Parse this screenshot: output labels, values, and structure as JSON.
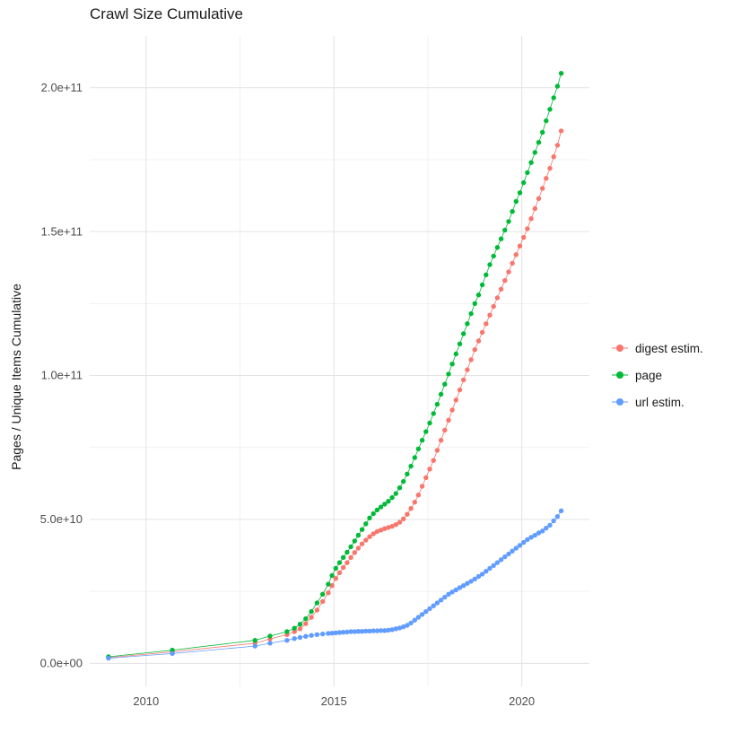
{
  "chart_data": {
    "type": "scatter",
    "title": "Crawl Size Cumulative",
    "xlabel": "",
    "ylabel": "Pages / Unique Items Cumulative",
    "legend_position": "right",
    "grid": true,
    "value_unit_note": "point y-values are in billions (1e9); axis labels shown in scientific notation",
    "xlim": [
      2008.5,
      2021.8
    ],
    "ylim": [
      -8,
      218
    ],
    "x_ticks": [
      {
        "v": 2010,
        "label": "2010"
      },
      {
        "v": 2015,
        "label": "2015"
      },
      {
        "v": 2020,
        "label": "2020"
      }
    ],
    "y_ticks": [
      {
        "v": 0,
        "label": "0.0e+00"
      },
      {
        "v": 50,
        "label": "5.0e+10"
      },
      {
        "v": 100,
        "label": "1.0e+11"
      },
      {
        "v": 150,
        "label": "1.5e+11"
      },
      {
        "v": 200,
        "label": "2.0e+11"
      }
    ],
    "x_minor": [
      2012.5,
      2017.5
    ],
    "y_minor": [
      25,
      75,
      125,
      175
    ],
    "colors": {
      "background": "#FFFFFF",
      "grid_major": "#E3E3E3",
      "grid_minor": "#F1F1F1",
      "tick_label": "#4D4D4D",
      "text": "#1A1A1A"
    },
    "series": [
      {
        "name": "digest estim.",
        "color": "#F8766D",
        "points": [
          [
            2009.0,
            2.0
          ],
          [
            2010.7,
            4.0
          ],
          [
            2012.9,
            7.0
          ],
          [
            2013.3,
            8.5
          ],
          [
            2013.75,
            10.0
          ],
          [
            2013.95,
            11.0
          ],
          [
            2014.1,
            12.0
          ],
          [
            2014.25,
            13.8
          ],
          [
            2014.4,
            16.0
          ],
          [
            2014.55,
            18.5
          ],
          [
            2014.7,
            21.5
          ],
          [
            2014.85,
            24.5
          ],
          [
            2014.95,
            27.0
          ],
          [
            2015.05,
            29.5
          ],
          [
            2015.15,
            31.5
          ],
          [
            2015.25,
            33.3
          ],
          [
            2015.35,
            35.0
          ],
          [
            2015.45,
            36.8
          ],
          [
            2015.55,
            38.5
          ],
          [
            2015.65,
            40.0
          ],
          [
            2015.75,
            41.5
          ],
          [
            2015.85,
            42.8
          ],
          [
            2015.95,
            44.0
          ],
          [
            2016.05,
            45.0
          ],
          [
            2016.15,
            45.8
          ],
          [
            2016.25,
            46.3
          ],
          [
            2016.35,
            46.8
          ],
          [
            2016.45,
            47.2
          ],
          [
            2016.55,
            47.6
          ],
          [
            2016.65,
            48.2
          ],
          [
            2016.75,
            49.0
          ],
          [
            2016.85,
            50.2
          ],
          [
            2016.95,
            51.8
          ],
          [
            2017.05,
            53.8
          ],
          [
            2017.15,
            56.0
          ],
          [
            2017.25,
            58.5
          ],
          [
            2017.35,
            61.5
          ],
          [
            2017.45,
            64.5
          ],
          [
            2017.55,
            67.5
          ],
          [
            2017.65,
            70.5
          ],
          [
            2017.75,
            74.0
          ],
          [
            2017.85,
            77.5
          ],
          [
            2017.95,
            81.0
          ],
          [
            2018.05,
            84.5
          ],
          [
            2018.15,
            88.0
          ],
          [
            2018.25,
            91.5
          ],
          [
            2018.35,
            95.0
          ],
          [
            2018.45,
            98.5
          ],
          [
            2018.55,
            102.0
          ],
          [
            2018.65,
            105.5
          ],
          [
            2018.75,
            109.0
          ],
          [
            2018.85,
            112.0
          ],
          [
            2018.95,
            115.0
          ],
          [
            2019.05,
            118.0
          ],
          [
            2019.15,
            121.0
          ],
          [
            2019.25,
            124.0
          ],
          [
            2019.35,
            127.0
          ],
          [
            2019.45,
            130.0
          ],
          [
            2019.55,
            133.0
          ],
          [
            2019.65,
            136.0
          ],
          [
            2019.75,
            139.0
          ],
          [
            2019.85,
            142.0
          ],
          [
            2019.95,
            145.0
          ],
          [
            2020.05,
            148.0
          ],
          [
            2020.15,
            151.0
          ],
          [
            2020.25,
            154.5
          ],
          [
            2020.35,
            158.0
          ],
          [
            2020.45,
            161.5
          ],
          [
            2020.55,
            165.0
          ],
          [
            2020.65,
            168.5
          ],
          [
            2020.75,
            172.0
          ],
          [
            2020.85,
            176.0
          ],
          [
            2020.95,
            180.0
          ],
          [
            2021.05,
            185.0
          ]
        ]
      },
      {
        "name": "page",
        "color": "#00BA38",
        "points": [
          [
            2009.0,
            2.3
          ],
          [
            2010.7,
            4.6
          ],
          [
            2012.9,
            8.0
          ],
          [
            2013.3,
            9.5
          ],
          [
            2013.75,
            11.0
          ],
          [
            2013.95,
            12.2
          ],
          [
            2014.1,
            13.6
          ],
          [
            2014.25,
            15.5
          ],
          [
            2014.4,
            18.0
          ],
          [
            2014.55,
            21.0
          ],
          [
            2014.7,
            24.0
          ],
          [
            2014.85,
            27.5
          ],
          [
            2014.95,
            30.5
          ],
          [
            2015.05,
            33.0
          ],
          [
            2015.15,
            35.0
          ],
          [
            2015.25,
            36.8
          ],
          [
            2015.35,
            38.6
          ],
          [
            2015.45,
            40.5
          ],
          [
            2015.55,
            42.5
          ],
          [
            2015.65,
            44.5
          ],
          [
            2015.75,
            46.5
          ],
          [
            2015.85,
            48.5
          ],
          [
            2015.95,
            50.5
          ],
          [
            2016.05,
            52.0
          ],
          [
            2016.15,
            53.3
          ],
          [
            2016.25,
            54.3
          ],
          [
            2016.35,
            55.3
          ],
          [
            2016.45,
            56.3
          ],
          [
            2016.55,
            57.6
          ],
          [
            2016.65,
            59.0
          ],
          [
            2016.75,
            61.0
          ],
          [
            2016.85,
            63.2
          ],
          [
            2016.95,
            65.8
          ],
          [
            2017.05,
            68.5
          ],
          [
            2017.15,
            71.5
          ],
          [
            2017.25,
            74.5
          ],
          [
            2017.35,
            77.5
          ],
          [
            2017.45,
            80.5
          ],
          [
            2017.55,
            83.5
          ],
          [
            2017.65,
            86.8
          ],
          [
            2017.75,
            90.0
          ],
          [
            2017.85,
            93.5
          ],
          [
            2017.95,
            97.0
          ],
          [
            2018.05,
            100.5
          ],
          [
            2018.15,
            104.0
          ],
          [
            2018.25,
            107.5
          ],
          [
            2018.35,
            111.0
          ],
          [
            2018.45,
            114.5
          ],
          [
            2018.55,
            118.0
          ],
          [
            2018.65,
            121.5
          ],
          [
            2018.75,
            125.0
          ],
          [
            2018.85,
            128.0
          ],
          [
            2018.95,
            131.5
          ],
          [
            2019.05,
            135.0
          ],
          [
            2019.15,
            138.5
          ],
          [
            2019.25,
            141.5
          ],
          [
            2019.35,
            144.5
          ],
          [
            2019.45,
            147.5
          ],
          [
            2019.55,
            150.5
          ],
          [
            2019.65,
            153.5
          ],
          [
            2019.75,
            157.0
          ],
          [
            2019.85,
            160.5
          ],
          [
            2019.95,
            163.5
          ],
          [
            2020.05,
            167.0
          ],
          [
            2020.15,
            170.5
          ],
          [
            2020.25,
            174.0
          ],
          [
            2020.35,
            177.5
          ],
          [
            2020.45,
            181.0
          ],
          [
            2020.55,
            184.5
          ],
          [
            2020.65,
            188.5
          ],
          [
            2020.75,
            192.5
          ],
          [
            2020.85,
            196.5
          ],
          [
            2020.95,
            200.5
          ],
          [
            2021.05,
            205.0
          ]
        ]
      },
      {
        "name": "url estim.",
        "color": "#619CFF",
        "points": [
          [
            2009.0,
            1.8
          ],
          [
            2010.7,
            3.4
          ],
          [
            2012.9,
            6.0
          ],
          [
            2013.3,
            7.0
          ],
          [
            2013.75,
            8.0
          ],
          [
            2013.95,
            8.6
          ],
          [
            2014.1,
            9.0
          ],
          [
            2014.25,
            9.4
          ],
          [
            2014.4,
            9.7
          ],
          [
            2014.55,
            10.0
          ],
          [
            2014.7,
            10.2
          ],
          [
            2014.85,
            10.4
          ],
          [
            2014.95,
            10.5
          ],
          [
            2015.05,
            10.6
          ],
          [
            2015.15,
            10.7
          ],
          [
            2015.25,
            10.8
          ],
          [
            2015.35,
            10.9
          ],
          [
            2015.45,
            11.0
          ],
          [
            2015.55,
            11.0
          ],
          [
            2015.65,
            11.1
          ],
          [
            2015.75,
            11.1
          ],
          [
            2015.85,
            11.2
          ],
          [
            2015.95,
            11.2
          ],
          [
            2016.05,
            11.3
          ],
          [
            2016.15,
            11.3
          ],
          [
            2016.25,
            11.4
          ],
          [
            2016.35,
            11.4
          ],
          [
            2016.45,
            11.5
          ],
          [
            2016.55,
            11.7
          ],
          [
            2016.65,
            12.0
          ],
          [
            2016.75,
            12.3
          ],
          [
            2016.85,
            12.7
          ],
          [
            2016.95,
            13.2
          ],
          [
            2017.05,
            14.0
          ],
          [
            2017.15,
            15.0
          ],
          [
            2017.25,
            16.0
          ],
          [
            2017.35,
            17.0
          ],
          [
            2017.45,
            18.0
          ],
          [
            2017.55,
            19.0
          ],
          [
            2017.65,
            20.0
          ],
          [
            2017.75,
            21.0
          ],
          [
            2017.85,
            22.0
          ],
          [
            2017.95,
            23.0
          ],
          [
            2018.05,
            24.0
          ],
          [
            2018.15,
            24.8
          ],
          [
            2018.25,
            25.5
          ],
          [
            2018.35,
            26.3
          ],
          [
            2018.45,
            27.0
          ],
          [
            2018.55,
            27.8
          ],
          [
            2018.65,
            28.5
          ],
          [
            2018.75,
            29.3
          ],
          [
            2018.85,
            30.2
          ],
          [
            2018.95,
            31.0
          ],
          [
            2019.05,
            32.0
          ],
          [
            2019.15,
            33.0
          ],
          [
            2019.25,
            34.0
          ],
          [
            2019.35,
            35.0
          ],
          [
            2019.45,
            36.0
          ],
          [
            2019.55,
            37.0
          ],
          [
            2019.65,
            38.0
          ],
          [
            2019.75,
            39.0
          ],
          [
            2019.85,
            40.0
          ],
          [
            2019.95,
            41.0
          ],
          [
            2020.05,
            42.0
          ],
          [
            2020.15,
            43.0
          ],
          [
            2020.25,
            43.8
          ],
          [
            2020.35,
            44.5
          ],
          [
            2020.45,
            45.3
          ],
          [
            2020.55,
            46.0
          ],
          [
            2020.65,
            47.0
          ],
          [
            2020.75,
            48.0
          ],
          [
            2020.85,
            49.5
          ],
          [
            2020.95,
            51.0
          ],
          [
            2021.05,
            53.0
          ]
        ]
      }
    ]
  }
}
